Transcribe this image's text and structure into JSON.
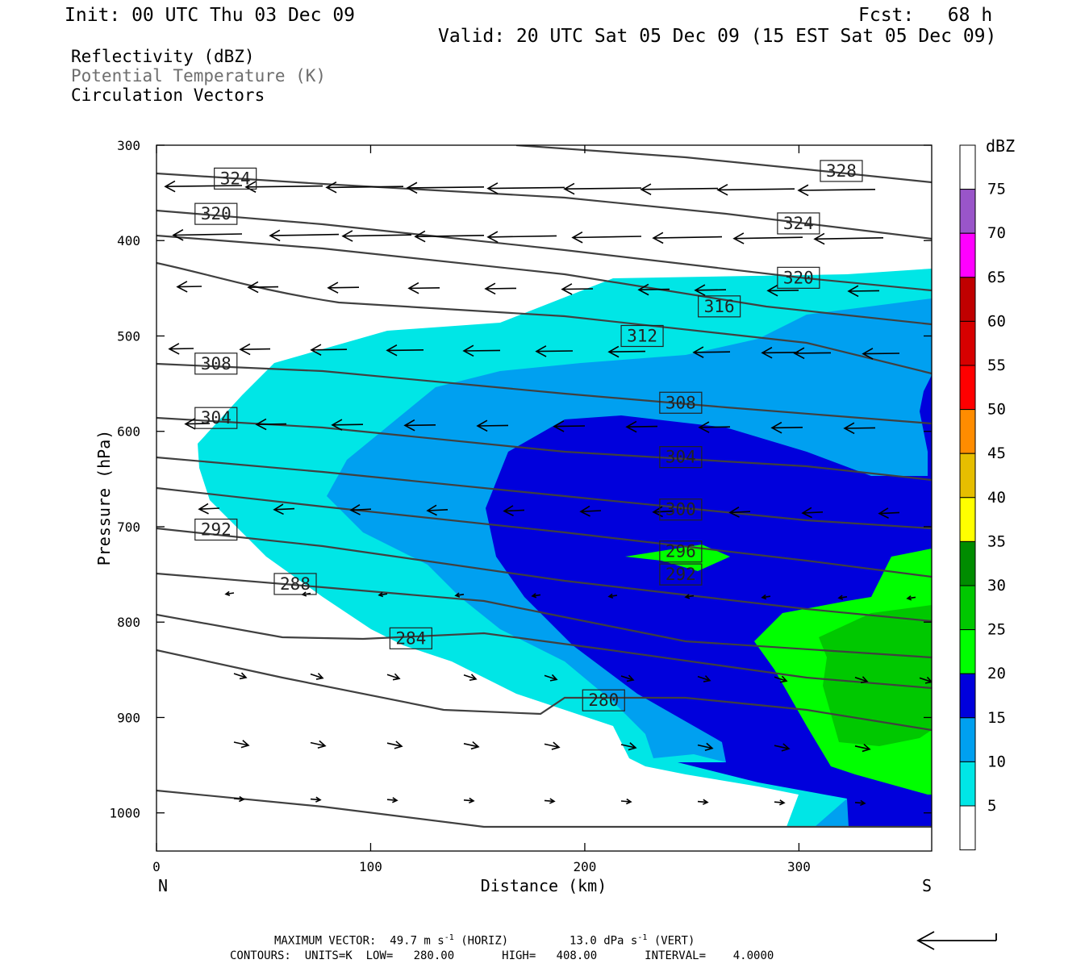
{
  "header": {
    "init": "Init: 00 UTC Thu 03 Dec 09",
    "fcst": "Fcst:   68 h",
    "valid": "Valid: 20 UTC Sat 05 Dec 09 (15 EST Sat 05 Dec 09)"
  },
  "fields": {
    "reflectivity": "Reflectivity (dBZ)",
    "theta": "Potential Temperature (K)",
    "vectors": "Circulation Vectors"
  },
  "footer": {
    "max_prefix": "MAXIMUM VECTOR:  49.7 m s",
    "max_mid": " (HORIZ)         13.0 dPa s",
    "max_suffix": " (VERT)",
    "exponent": "-1",
    "contours": "CONTOURS:  UNITS=K  LOW=   280.00       HIGH=   408.00       INTERVAL=    4.0000"
  },
  "colors": {
    "c5": "#00e6e6",
    "c10": "#00a0f0",
    "c15": "#0000dc",
    "c20": "#00ff00",
    "c25": "#00c800",
    "c30": "#008c00",
    "c35": "#ffff00",
    "c40": "#e6be00",
    "c45": "#ff8c00",
    "c50": "#ff0000",
    "c55": "#d70000",
    "c60": "#c00000",
    "c65": "#ff00ff",
    "c70": "#9955c9",
    "contour": "#404040"
  },
  "chart_data": {
    "type": "contour",
    "xlabel": "Distance (km)",
    "ylabel": "Pressure (hPa)",
    "x_ticks": [
      0,
      100,
      200,
      300
    ],
    "y_ticks": [
      300,
      400,
      500,
      600,
      700,
      800,
      900,
      1000
    ],
    "x_end_labels": {
      "left": "N",
      "right": "S"
    },
    "xlim": [
      0,
      362
    ],
    "ylim": [
      300,
      1040
    ],
    "y_reversed": true,
    "colorbar": {
      "label": "dBZ",
      "ticks": [
        5,
        10,
        15,
        20,
        25,
        30,
        35,
        40,
        45,
        50,
        55,
        60,
        65,
        70,
        75
      ]
    },
    "contour_labels": [
      {
        "v": "328",
        "x": 310,
        "p": 327
      },
      {
        "v": "324",
        "x": 27,
        "p": 335
      },
      {
        "v": "324",
        "x": 290,
        "p": 382
      },
      {
        "v": "320",
        "x": 18,
        "p": 372
      },
      {
        "v": "320",
        "x": 290,
        "p": 439
      },
      {
        "v": "316",
        "x": 253,
        "p": 469
      },
      {
        "v": "312",
        "x": 217,
        "p": 500
      },
      {
        "v": "308",
        "x": 18,
        "p": 529
      },
      {
        "v": "308",
        "x": 235,
        "p": 570
      },
      {
        "v": "304",
        "x": 18,
        "p": 586
      },
      {
        "v": "304",
        "x": 235,
        "p": 627
      },
      {
        "v": "300",
        "x": 235,
        "p": 682
      },
      {
        "v": "296",
        "x": 235,
        "p": 726
      },
      {
        "v": "292",
        "x": 18,
        "p": 703
      },
      {
        "v": "292",
        "x": 235,
        "p": 750
      },
      {
        "v": "288",
        "x": 55,
        "p": 760
      },
      {
        "v": "284",
        "x": 109,
        "p": 817
      },
      {
        "v": "280",
        "x": 199,
        "p": 882
      }
    ]
  }
}
